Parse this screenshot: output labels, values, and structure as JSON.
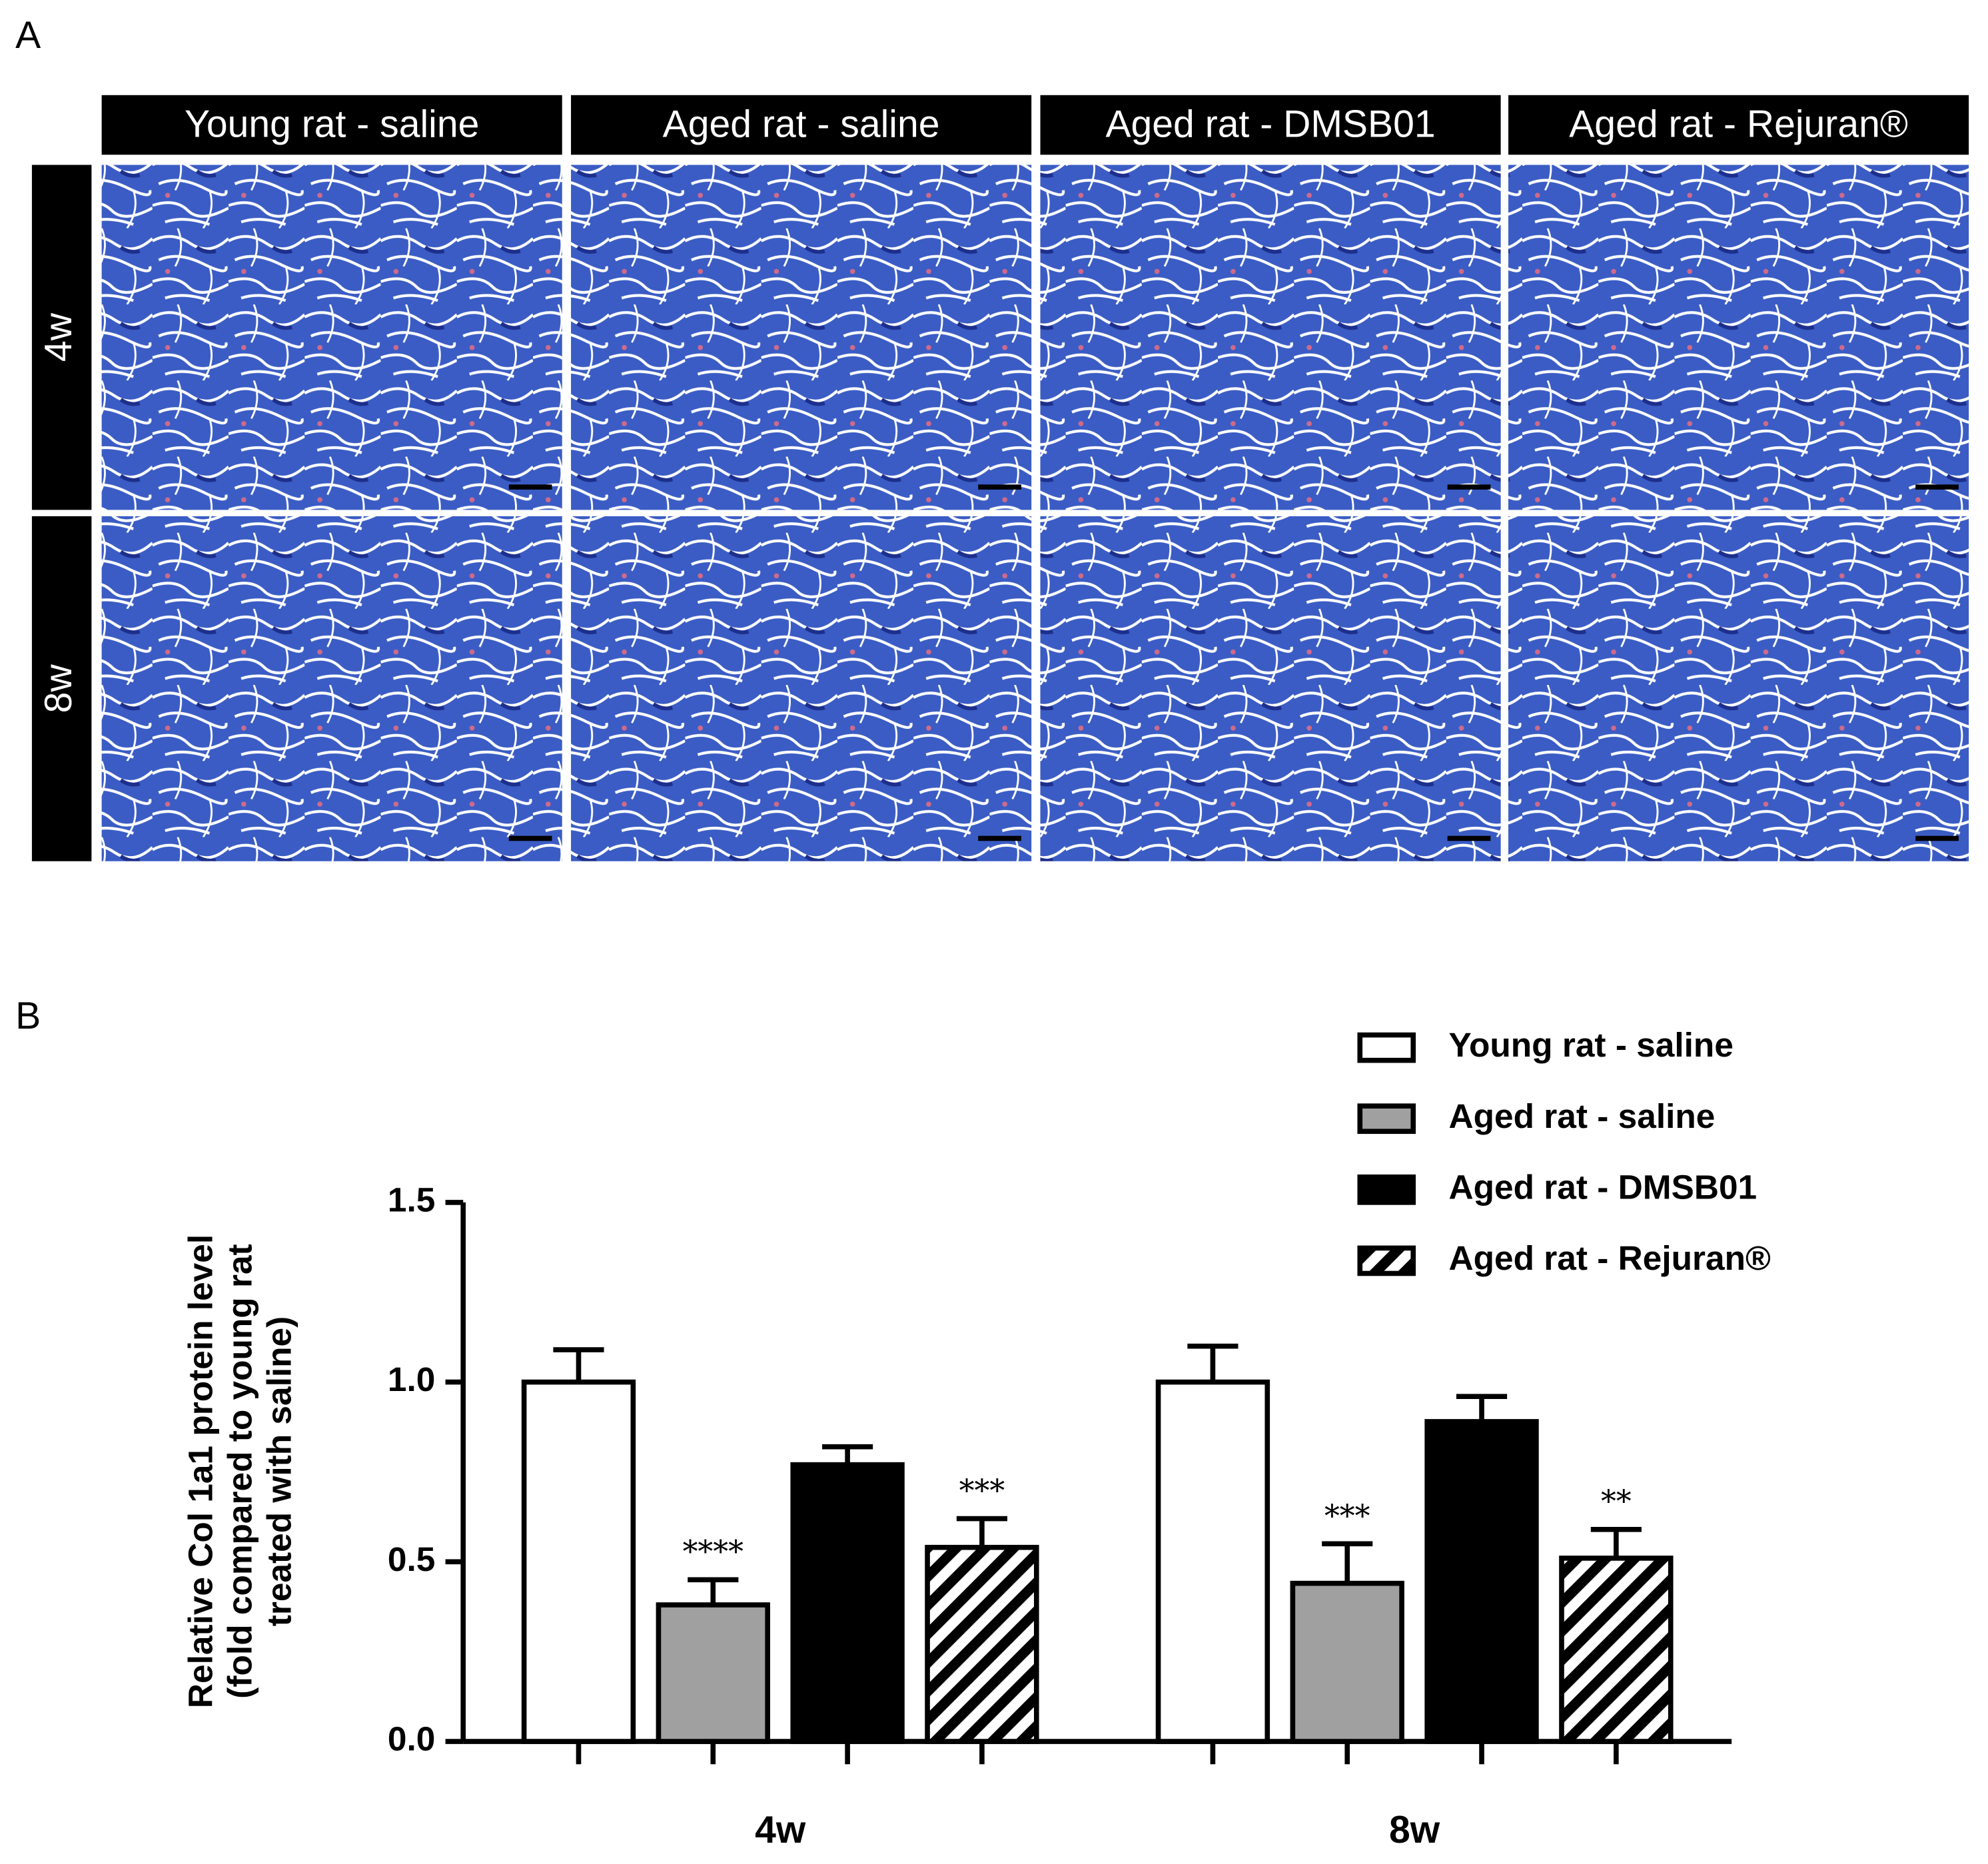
{
  "panel_a": {
    "label": "A",
    "columns": [
      "Young rat - saline",
      "Aged rat - saline",
      "Aged rat - DMSB01",
      "Aged rat - Rejuran®"
    ],
    "rows": [
      "4w",
      "8w"
    ]
  },
  "panel_b": {
    "label": "B"
  },
  "chart_data": {
    "type": "bar",
    "ylabel": [
      "Relative Col 1a1 protein level",
      "(fold compared to young rat",
      "treated with saline)"
    ],
    "categories": [
      "4w",
      "8w"
    ],
    "series": [
      {
        "name": "Young rat - saline",
        "color": "#ffffff",
        "values": [
          1.0,
          1.0
        ],
        "errors": [
          0.09,
          0.1
        ]
      },
      {
        "name": "Aged rat - saline",
        "color": "#a0a0a0",
        "values": [
          0.38,
          0.44
        ],
        "errors": [
          0.07,
          0.11
        ],
        "significance": [
          "****",
          "***"
        ]
      },
      {
        "name": "Aged rat - DMSB01",
        "color": "#000000",
        "values": [
          0.77,
          0.89
        ],
        "errors": [
          0.05,
          0.07
        ]
      },
      {
        "name": "Aged rat - Rejuran®",
        "color": "#000000",
        "hatch": true,
        "values": [
          0.54,
          0.51
        ],
        "errors": [
          0.08,
          0.08
        ],
        "significance": [
          "***",
          "**"
        ]
      }
    ],
    "ylim": [
      0,
      1.5
    ],
    "yticks": [
      {
        "value": 0,
        "label": "0.0"
      },
      0.5,
      {
        "value": 1,
        "label": "1.0"
      },
      1.5
    ],
    "legend": "upper right"
  }
}
